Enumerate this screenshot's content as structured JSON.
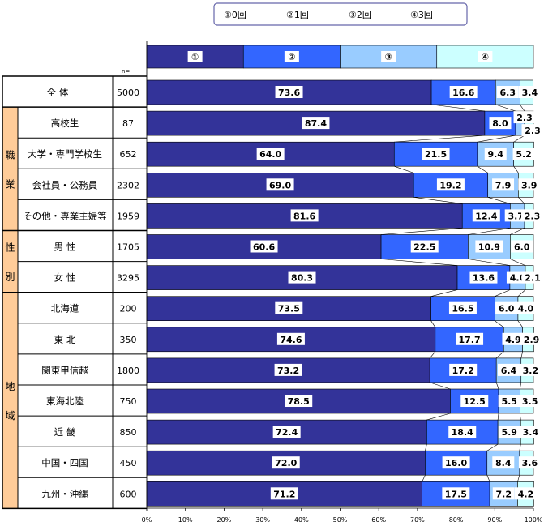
{
  "chart_data": {
    "type": "bar",
    "orientation": "horizontal",
    "stacked": true,
    "percent": true,
    "legend": {
      "position": "top",
      "items": [
        "①0回",
        "②1回",
        "③2回",
        "④3回"
      ]
    },
    "header_row": {
      "labels": [
        "①",
        "②",
        "③",
        "④"
      ],
      "values": [
        25,
        25,
        25,
        25
      ]
    },
    "n_header": "n=",
    "group_labels": [
      "職業",
      "性別",
      "地域"
    ],
    "rows": [
      {
        "label": "全 体",
        "n": "5000",
        "group": ""
      },
      {
        "label": "高校生",
        "n": "87",
        "group": "職業"
      },
      {
        "label": "大学・専門学校生",
        "n": "652",
        "group": "職業"
      },
      {
        "label": "会社員・公務員",
        "n": "2302",
        "group": "職業"
      },
      {
        "label": "その他・専業主婦等",
        "n": "1959",
        "group": "職業"
      },
      {
        "label": "男 性",
        "n": "1705",
        "group": "性別"
      },
      {
        "label": "女 性",
        "n": "3295",
        "group": "性別"
      },
      {
        "label": "北海道",
        "n": "200",
        "group": "地域"
      },
      {
        "label": "東 北",
        "n": "350",
        "group": "地域"
      },
      {
        "label": "関東甲信越",
        "n": "1800",
        "group": "地域"
      },
      {
        "label": "東海北陸",
        "n": "750",
        "group": "地域"
      },
      {
        "label": "近 畿",
        "n": "850",
        "group": "地域"
      },
      {
        "label": "中国・四国",
        "n": "450",
        "group": "地域"
      },
      {
        "label": "九州・沖縄",
        "n": "600",
        "group": "地域"
      }
    ],
    "series": [
      {
        "name": "①0回",
        "values": [
          73.6,
          87.4,
          64.0,
          69.0,
          81.6,
          60.6,
          80.3,
          73.5,
          74.6,
          73.2,
          78.5,
          72.4,
          72.0,
          71.2
        ]
      },
      {
        "name": "②1回",
        "values": [
          16.6,
          8.0,
          21.5,
          19.2,
          12.4,
          22.5,
          13.6,
          16.5,
          17.7,
          17.2,
          12.5,
          18.4,
          16.0,
          17.5
        ]
      },
      {
        "name": "③2回",
        "values": [
          6.3,
          2.3,
          9.4,
          7.9,
          3.7,
          10.9,
          4.0,
          6.0,
          4.9,
          6.4,
          5.5,
          5.9,
          8.4,
          7.2
        ]
      },
      {
        "name": "④3回",
        "values": [
          3.4,
          2.3,
          5.2,
          3.9,
          2.3,
          6.0,
          2.1,
          4.0,
          2.9,
          3.2,
          3.5,
          3.4,
          3.6,
          4.2
        ]
      }
    ],
    "x_ticks": [
      "0%",
      "10%",
      "20%",
      "30%",
      "40%",
      "50%",
      "60%",
      "70%",
      "80%",
      "90%",
      "100%"
    ],
    "xlim": [
      0,
      100
    ],
    "colors": [
      "#333399",
      "#3366ff",
      "#99ccff",
      "#ccffff"
    ],
    "grid": false
  }
}
